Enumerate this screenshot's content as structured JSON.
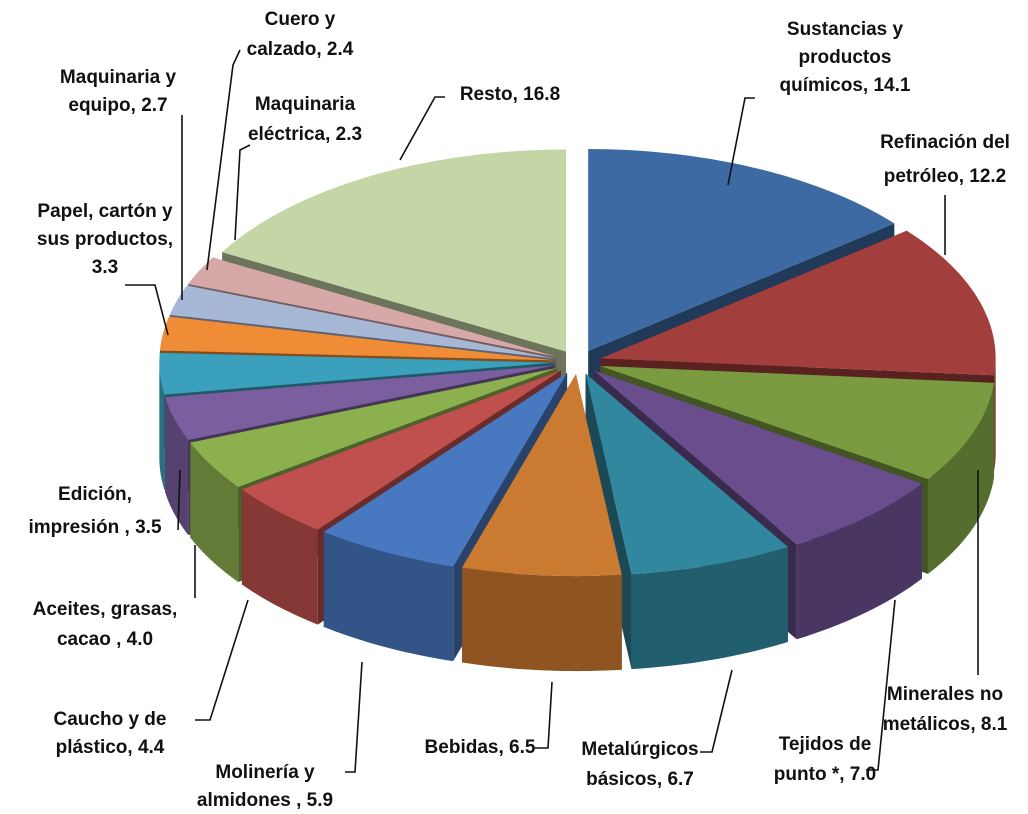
{
  "chart_data": {
    "type": "pie3d",
    "labels": [
      [
        "Sustancias y",
        "productos",
        "químicos, 14.1"
      ],
      [
        "Refinación del",
        "petróleo, 12.2"
      ],
      [
        "Minerales no",
        "metálicos, 8.1"
      ],
      [
        "Tejidos de",
        "punto *, 7.0"
      ],
      [
        "Metalúrgicos",
        "básicos, 6.7"
      ],
      [
        "Bebidas, 6.5"
      ],
      [
        "Molinería y",
        "almidones , 5.9"
      ],
      [
        "Caucho y de",
        "plástico, 4.4"
      ],
      [
        "Aceites,  grasas,",
        "cacao , 4.0"
      ],
      [
        "Edición,",
        "impresión , 3.5"
      ],
      [
        "Papel, cartón y",
        "sus productos,",
        "3.3"
      ],
      [
        "Maquinaria y",
        "equipo, 2.7"
      ],
      [
        "Cuero y",
        "calzado, 2.4"
      ],
      [
        "Maquinaria",
        "eléctrica, 2.3"
      ],
      [
        "Resto, 16.8"
      ]
    ],
    "values": [
      14.1,
      12.2,
      8.1,
      7.0,
      6.7,
      6.5,
      5.9,
      4.4,
      4.0,
      3.5,
      3.3,
      2.7,
      2.4,
      2.3,
      16.8
    ],
    "colors": [
      "#3d6aa3",
      "#a23e3b",
      "#7a9b40",
      "#694d8c",
      "#31879d",
      "#cb7a32",
      "#4878c0",
      "#c0504d",
      "#8db04e",
      "#7a5ea0",
      "#3aa0bb",
      "#f08c35",
      "#a7b8d6",
      "#d6a8a8",
      "#c4d5a6"
    ]
  }
}
